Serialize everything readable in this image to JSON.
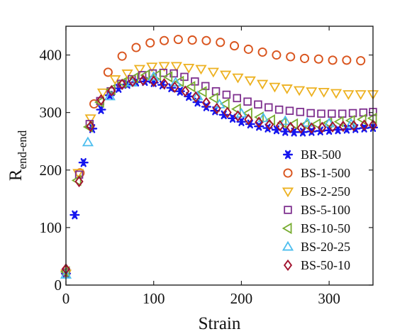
{
  "chart_data": {
    "type": "scatter",
    "title": "",
    "xlabel": "Strain",
    "ylabel_main": "R",
    "ylabel_sub": "end-end",
    "xlim": [
      0,
      350
    ],
    "ylim": [
      0,
      450
    ],
    "x_ticks": [
      0,
      100,
      200,
      300
    ],
    "y_ticks": [
      0,
      100,
      200,
      300,
      400
    ],
    "grid": false,
    "legend_position": "bottom-right",
    "series": [
      {
        "name": "BR-500",
        "marker": "asterisk",
        "color": "#1515ee",
        "x": [
          0,
          10,
          20,
          30,
          40,
          50,
          60,
          70,
          80,
          90,
          100,
          110,
          120,
          130,
          140,
          150,
          160,
          170,
          180,
          190,
          200,
          210,
          220,
          230,
          240,
          250,
          260,
          270,
          280,
          290,
          300,
          310,
          320,
          330,
          340,
          350
        ],
        "y": [
          20,
          122,
          213,
          272,
          305,
          330,
          342,
          349,
          353,
          354,
          352,
          348,
          343,
          337,
          328,
          318,
          310,
          303,
          296,
          290,
          284,
          280,
          276,
          273,
          270,
          267,
          266,
          266,
          267,
          268,
          269,
          270,
          271,
          272,
          273,
          274
        ]
      },
      {
        "name": "BS-1-500",
        "marker": "circle",
        "color": "#d9541d",
        "x": [
          0,
          16,
          32,
          48,
          64,
          80,
          96,
          112,
          128,
          144,
          160,
          176,
          192,
          208,
          224,
          240,
          256,
          272,
          288,
          304,
          320,
          336,
          352
        ],
        "y": [
          25,
          195,
          315,
          370,
          398,
          413,
          421,
          425,
          427,
          426,
          425,
          422,
          416,
          410,
          405,
          400,
          397,
          394,
          393,
          391,
          391,
          390,
          390
        ]
      },
      {
        "name": "BS-2-250",
        "marker": "triangle-down",
        "color": "#edb120",
        "x": [
          0,
          14,
          28,
          42,
          56,
          70,
          84,
          98,
          112,
          126,
          140,
          154,
          168,
          182,
          196,
          210,
          224,
          238,
          252,
          266,
          280,
          294,
          308,
          322,
          336,
          350
        ],
        "y": [
          20,
          195,
          290,
          335,
          358,
          368,
          376,
          380,
          381,
          381,
          378,
          376,
          371,
          366,
          361,
          356,
          350,
          345,
          342,
          339,
          337,
          336,
          334,
          332,
          332,
          332
        ]
      },
      {
        "name": "BS-5-100",
        "marker": "square",
        "color": "#7e2f8e",
        "x": [
          0,
          15,
          27,
          39,
          51,
          63,
          75,
          87,
          99,
          111,
          123,
          135,
          147,
          159,
          171,
          183,
          195,
          207,
          219,
          231,
          243,
          255,
          267,
          279,
          291,
          303,
          315,
          327,
          339,
          350
        ],
        "y": [
          22,
          192,
          280,
          320,
          337,
          350,
          358,
          365,
          368,
          369,
          368,
          362,
          354,
          346,
          337,
          331,
          325,
          319,
          314,
          309,
          305,
          303,
          301,
          299,
          298,
          298,
          298,
          299,
          300,
          301
        ]
      },
      {
        "name": "BS-10-50",
        "marker": "triangle-left",
        "color": "#77ac30",
        "x": [
          0,
          13,
          26,
          39,
          52,
          65,
          78,
          91,
          104,
          117,
          130,
          143,
          156,
          169,
          182,
          195,
          208,
          221,
          234,
          247,
          260,
          273,
          286,
          299,
          312,
          325,
          338,
          350
        ],
        "y": [
          23,
          182,
          275,
          318,
          340,
          352,
          360,
          365,
          365,
          362,
          354,
          345,
          336,
          325,
          315,
          306,
          299,
          292,
          287,
          282,
          280,
          279,
          280,
          282,
          284,
          286,
          288,
          290
        ]
      },
      {
        "name": "BS-20-25",
        "marker": "triangle-up",
        "color": "#4dbeee",
        "x": [
          0,
          25,
          50,
          75,
          100,
          125,
          150,
          175,
          200,
          225,
          250,
          275,
          300,
          325
        ],
        "y": [
          18,
          248,
          328,
          352,
          362,
          352,
          328,
          314,
          298,
          290,
          285,
          282,
          281,
          280
        ]
      },
      {
        "name": "BS-50-10",
        "marker": "diamond",
        "color": "#a2142f",
        "x": [
          0,
          15,
          28,
          40,
          52,
          64,
          76,
          88,
          100,
          112,
          124,
          136,
          148,
          160,
          172,
          184,
          196,
          208,
          220,
          232,
          244,
          256,
          268,
          280,
          292,
          304,
          316,
          328,
          340,
          350
        ],
        "y": [
          28,
          180,
          276,
          322,
          338,
          349,
          354,
          356,
          354,
          350,
          344,
          337,
          327,
          317,
          307,
          300,
          294,
          288,
          283,
          279,
          277,
          274,
          273,
          273,
          274,
          275,
          276,
          277,
          278,
          278
        ]
      }
    ]
  }
}
